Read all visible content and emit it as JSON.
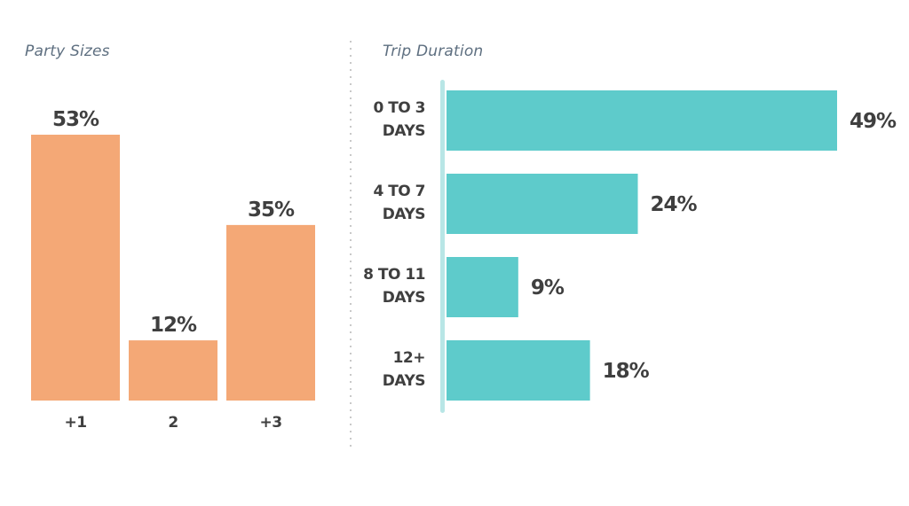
{
  "chart_data": [
    {
      "type": "bar",
      "title": "Party Sizes",
      "categories": [
        "+1",
        "2",
        "+3"
      ],
      "values": [
        53,
        12,
        35
      ],
      "value_labels": [
        "53%",
        "12%",
        "35%"
      ],
      "ylim": [
        0,
        53
      ],
      "color": "#f4a876",
      "grid": false
    },
    {
      "type": "bar",
      "orientation": "horizontal",
      "title": "Trip Duration",
      "categories": [
        [
          "0 TO 3",
          "DAYS"
        ],
        [
          "4 TO 7",
          "DAYS"
        ],
        [
          "8 TO 11",
          "DAYS"
        ],
        [
          "12+",
          "DAYS"
        ]
      ],
      "values": [
        49,
        24,
        9,
        18
      ],
      "value_labels": [
        "49%",
        "24%",
        "9%",
        "18%"
      ],
      "xlim": [
        0,
        49
      ],
      "color": "#5ecbcb",
      "axis_color": "#b8e6e6",
      "grid": false
    }
  ]
}
